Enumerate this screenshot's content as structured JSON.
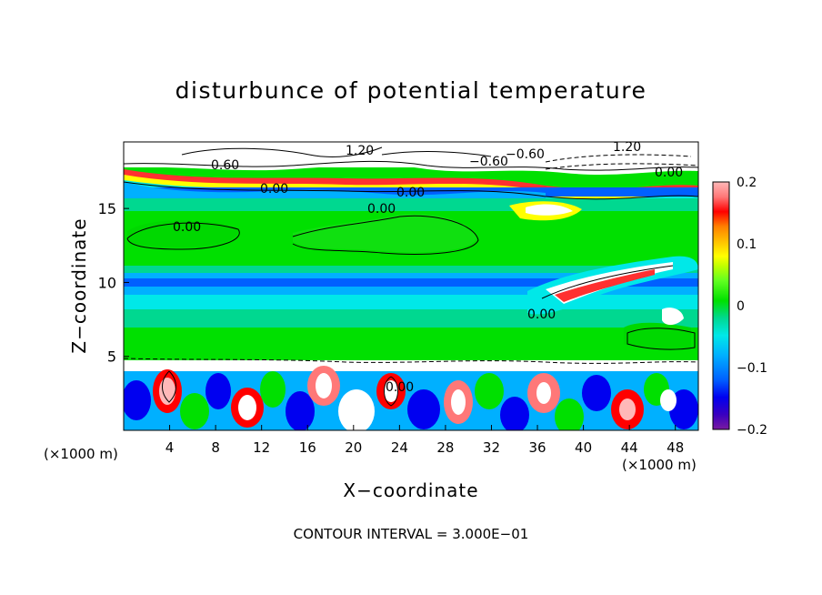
{
  "chart_data": {
    "type": "heatmap",
    "title": "disturbunce of potential temperature",
    "xlabel": "X−coordinate",
    "ylabel": "Z−coordinate",
    "x_unit_label": "(×1000 m)",
    "x_unit_label_right": "(×1000 m)",
    "x_range": [
      0,
      50
    ],
    "y_range": [
      0,
      19.5
    ],
    "x_ticks": [
      "4",
      "8",
      "12",
      "16",
      "20",
      "24",
      "28",
      "32",
      "36",
      "40",
      "44",
      "48"
    ],
    "y_ticks": [
      "5",
      "10",
      "15"
    ],
    "colorbar": {
      "range": [
        -0.2,
        0.2
      ],
      "tick_labels": [
        "0.2",
        "0.1",
        "0",
        "−0.1",
        "−0.2"
      ],
      "colors": [
        "#7a1aa0",
        "#3a00c0",
        "#0000f0",
        "#0060ff",
        "#00b0ff",
        "#00e8e8",
        "#00d890",
        "#00e000",
        "#60ff20",
        "#c0ff00",
        "#ffff00",
        "#ffc000",
        "#ff8000",
        "#ff3000",
        "#ff0000",
        "#ff7878",
        "#ffb8b8"
      ]
    },
    "contour_labels": [
      "1.20",
      "−0.60",
      "0.60",
      "0.00",
      "0.00",
      "0.00",
      "0.00",
      "1.20",
      "0.00",
      "−0.60",
      "0.00",
      "0.00"
    ],
    "contour_interval": "CONTOUR INTERVAL = 3.000E−01"
  }
}
